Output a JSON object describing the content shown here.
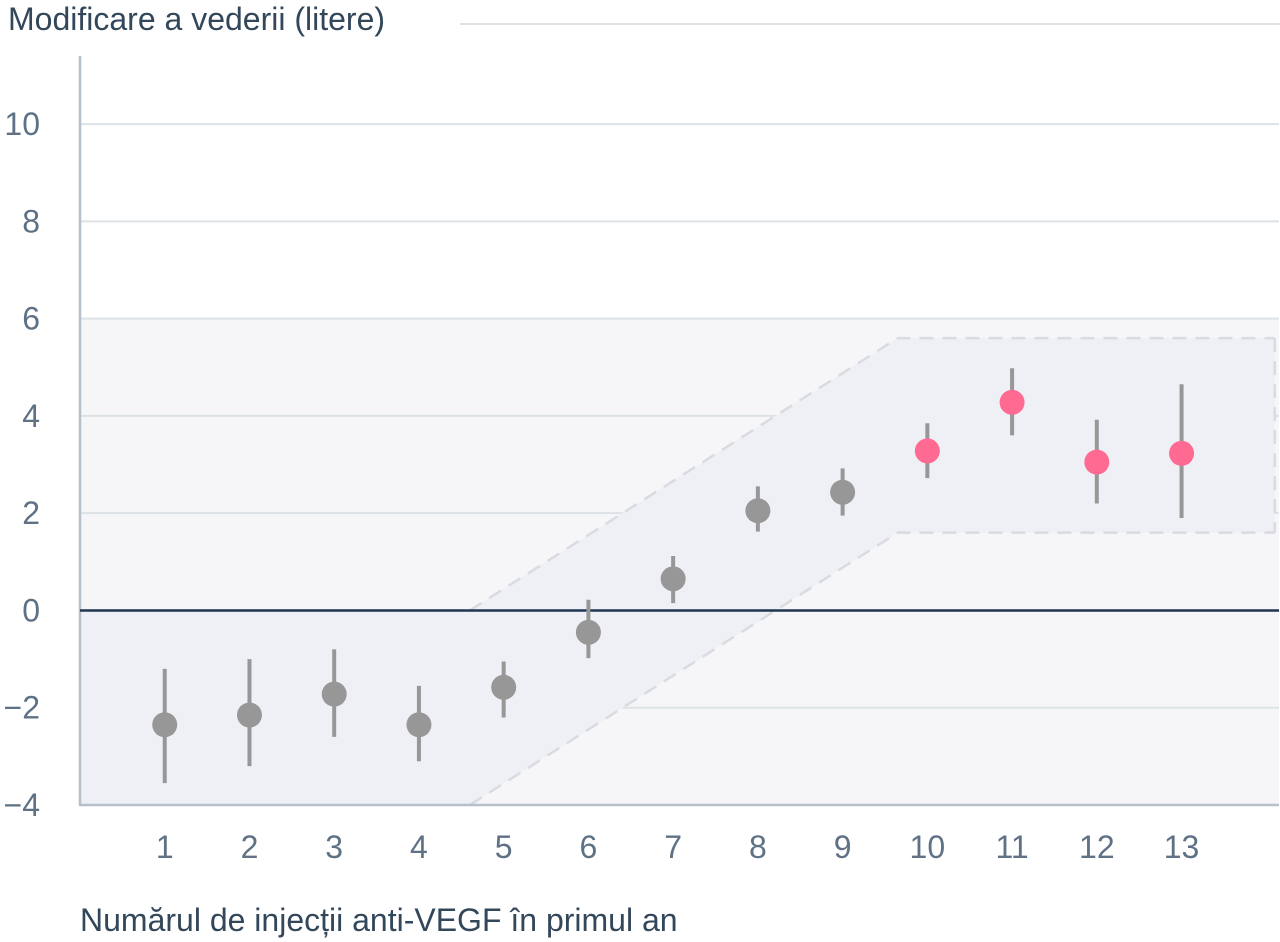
{
  "chart_data": {
    "type": "scatter",
    "ylabel": "Modificare a vederii (litere)",
    "xlabel": "Numărul de injecții anti-VEGF în primul an",
    "x": [
      1,
      2,
      3,
      4,
      5,
      6,
      7,
      8,
      9,
      10,
      11,
      12,
      13
    ],
    "y": [
      -2.35,
      -2.15,
      -1.72,
      -2.35,
      -1.58,
      -0.45,
      0.65,
      2.05,
      2.43,
      3.28,
      4.28,
      3.05,
      3.23
    ],
    "error_low": [
      -3.55,
      -3.2,
      -2.6,
      -3.1,
      -2.2,
      -0.98,
      0.15,
      1.62,
      1.95,
      2.72,
      3.6,
      2.2,
      1.9
    ],
    "error_high": [
      -1.2,
      -1.0,
      -0.8,
      -1.55,
      -1.05,
      0.22,
      1.12,
      2.55,
      2.92,
      3.85,
      4.98,
      3.92,
      4.65
    ],
    "point_colors": [
      "#979797",
      "#979797",
      "#979797",
      "#979797",
      "#979797",
      "#979797",
      "#979797",
      "#979797",
      "#979797",
      "#ff6a92",
      "#ff6a92",
      "#ff6a92",
      "#ff6a92"
    ],
    "error_bar_color": "#979797",
    "x_ticks": [
      "1",
      "2",
      "3",
      "4",
      "5",
      "6",
      "7",
      "8",
      "9",
      "10",
      "11",
      "12",
      "13"
    ],
    "y_ticks": [
      "−4",
      "−2",
      "0",
      "2",
      "4",
      "6",
      "8",
      "10"
    ],
    "y_tick_values": [
      -4,
      -2,
      0,
      2,
      4,
      6,
      8,
      10
    ],
    "ylim": [
      -4,
      11.4
    ],
    "xlim": [
      0,
      14.15
    ],
    "grid": true,
    "zero_line": true,
    "trend_band": {
      "lower": [
        [
          4.6,
          -4
        ],
        [
          9.65,
          1.6
        ],
        [
          14.1,
          1.6
        ]
      ],
      "upper": [
        [
          4.6,
          0
        ],
        [
          9.65,
          5.6
        ],
        [
          14.1,
          5.6
        ]
      ]
    },
    "colors": {
      "zero_line": "#1f3550",
      "grid": "#dde2e7",
      "axis": "#b7c0c9",
      "band_fill": "#eef0f5",
      "band_stroke": "#d9dbe0",
      "region_fill": "#f6f6f8"
    }
  }
}
